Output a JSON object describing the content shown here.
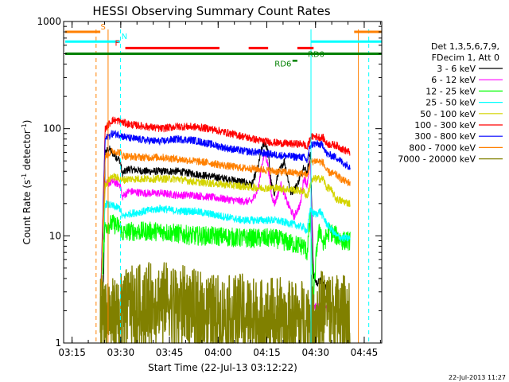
{
  "chart_data": {
    "type": "line",
    "title": "HESSI Observing Summary Count Rates",
    "xlabel": "Start Time (22-Jul-13 03:12:22)",
    "ylabel_main": "Count Rate (s",
    "ylabel_sup1": "-1",
    "ylabel_mid": " detector",
    "ylabel_sup2": "-1",
    "ylabel_end": ")",
    "y_scale": "log",
    "ylim": [
      1,
      1000
    ],
    "xlim_minutes": [
      0,
      98
    ],
    "x_ticks": [
      {
        "label": "03:15",
        "minute": 2.6
      },
      {
        "label": "03:30",
        "minute": 17.6
      },
      {
        "label": "03:45",
        "minute": 32.6
      },
      {
        "label": "04:00",
        "minute": 47.6
      },
      {
        "label": "04:15",
        "minute": 62.6
      },
      {
        "label": "04:30",
        "minute": 77.6
      },
      {
        "label": "04:45",
        "minute": 92.6
      }
    ],
    "y_ticks": [
      {
        "label": "1",
        "value": 1
      },
      {
        "label": "10",
        "value": 10
      },
      {
        "label": "100",
        "value": 100
      },
      {
        "label": "1000",
        "value": 1000
      }
    ],
    "legend_header": [
      "Det 1,3,5,6,7,9,",
      "FDecim 1, Att 0"
    ],
    "data_start_min": 11.3,
    "data_end_min": 88.3,
    "saa_gap_min": [
      75.6,
      76.0
    ],
    "series": [
      {
        "name": "3 - 6 keV",
        "color": "#000000",
        "values": [
          [
            11.3,
            2.8
          ],
          [
            11.8,
            3.5
          ],
          [
            12.3,
            3.4
          ],
          [
            12.8,
            60
          ],
          [
            14,
            65
          ],
          [
            16,
            55
          ],
          [
            17.5,
            50
          ],
          [
            18,
            38
          ],
          [
            20,
            42
          ],
          [
            25,
            40
          ],
          [
            30,
            40
          ],
          [
            35,
            40
          ],
          [
            40,
            38
          ],
          [
            45,
            36
          ],
          [
            50,
            34
          ],
          [
            55,
            32
          ],
          [
            58,
            30
          ],
          [
            60,
            45
          ],
          [
            61,
            65
          ],
          [
            62,
            75
          ],
          [
            63,
            60
          ],
          [
            64,
            30
          ],
          [
            65,
            25
          ],
          [
            66,
            38
          ],
          [
            68,
            50
          ],
          [
            70,
            25
          ],
          [
            72,
            30
          ],
          [
            74,
            45
          ],
          [
            75,
            38
          ],
          [
            76,
            62
          ],
          [
            77,
            4.2
          ],
          [
            78,
            3.6
          ],
          [
            79,
            3.8
          ],
          [
            80,
            3.5
          ],
          [
            81.2,
            3.2
          ]
        ]
      },
      {
        "name": "6 - 12 keV",
        "color": "#ff00ff",
        "values": [
          [
            11.3,
            2.0
          ],
          [
            12.8,
            30
          ],
          [
            15,
            32
          ],
          [
            17.5,
            30
          ],
          [
            18,
            23
          ],
          [
            20,
            26
          ],
          [
            25,
            25
          ],
          [
            30,
            25
          ],
          [
            35,
            24
          ],
          [
            40,
            24
          ],
          [
            45,
            23
          ],
          [
            50,
            22
          ],
          [
            55,
            21
          ],
          [
            58,
            21
          ],
          [
            60,
            28
          ],
          [
            61,
            45
          ],
          [
            62,
            60
          ],
          [
            63,
            45
          ],
          [
            64,
            24
          ],
          [
            65,
            20
          ],
          [
            67,
            30
          ],
          [
            69,
            20
          ],
          [
            71,
            15
          ],
          [
            73,
            20
          ],
          [
            74,
            35
          ],
          [
            75,
            30
          ],
          [
            76,
            50
          ],
          [
            77,
            2.2
          ],
          [
            81.2,
            2.1
          ]
        ]
      },
      {
        "name": "12 - 25 keV",
        "color": "#00ff00",
        "values": [
          [
            11.3,
            2.0
          ],
          [
            12.8,
            12.5
          ],
          [
            15,
            13
          ],
          [
            17.5,
            12
          ],
          [
            18,
            10.5
          ],
          [
            20,
            11
          ],
          [
            25,
            11
          ],
          [
            30,
            11
          ],
          [
            35,
            10.5
          ],
          [
            40,
            10
          ],
          [
            45,
            10
          ],
          [
            50,
            9.8
          ],
          [
            55,
            9.5
          ],
          [
            60,
            9.5
          ],
          [
            65,
            9.5
          ],
          [
            70,
            8.5
          ],
          [
            74,
            8
          ],
          [
            75,
            7
          ],
          [
            76,
            15
          ],
          [
            77,
            2.5
          ],
          [
            78,
            8
          ],
          [
            79,
            12
          ],
          [
            80,
            8
          ],
          [
            81,
            10
          ],
          [
            82,
            11
          ],
          [
            84,
            10
          ],
          [
            86,
            9
          ],
          [
            88.3,
            9
          ]
        ]
      },
      {
        "name": "25 - 50 keV",
        "color": "#00ffff",
        "values": [
          [
            11.3,
            2.0
          ],
          [
            12.8,
            20
          ],
          [
            15,
            19
          ],
          [
            17.5,
            18
          ],
          [
            18,
            15
          ],
          [
            20,
            16
          ],
          [
            25,
            17
          ],
          [
            30,
            18
          ],
          [
            35,
            17
          ],
          [
            40,
            17
          ],
          [
            45,
            16
          ],
          [
            50,
            15
          ],
          [
            55,
            14
          ],
          [
            60,
            14
          ],
          [
            65,
            14
          ],
          [
            70,
            13
          ],
          [
            74,
            12
          ],
          [
            75,
            11
          ],
          [
            76,
            18
          ],
          [
            77,
            16
          ],
          [
            78,
            16
          ],
          [
            79,
            17
          ],
          [
            80,
            15
          ],
          [
            81,
            13
          ],
          [
            82,
            12
          ],
          [
            84,
            10
          ],
          [
            86,
            9.5
          ],
          [
            88.3,
            9.5
          ]
        ]
      },
      {
        "name": "50 - 100 keV",
        "color": "#d4d400",
        "values": [
          [
            11.3,
            2.0
          ],
          [
            12.8,
            30
          ],
          [
            15,
            36
          ],
          [
            17.5,
            34
          ],
          [
            18,
            33
          ],
          [
            20,
            34
          ],
          [
            25,
            34
          ],
          [
            30,
            34
          ],
          [
            35,
            34
          ],
          [
            40,
            32
          ],
          [
            45,
            31
          ],
          [
            50,
            30
          ],
          [
            55,
            29
          ],
          [
            60,
            28
          ],
          [
            65,
            28
          ],
          [
            70,
            27
          ],
          [
            74,
            26
          ],
          [
            75,
            23
          ],
          [
            76,
            30
          ],
          [
            77,
            34
          ],
          [
            78,
            34
          ],
          [
            80,
            34
          ],
          [
            81,
            28
          ],
          [
            82,
            28
          ],
          [
            84,
            22
          ],
          [
            86,
            21
          ],
          [
            88.3,
            20
          ]
        ]
      },
      {
        "name": "100 - 300 keV",
        "color": "#ff0000",
        "values": [
          [
            11.3,
            2.0
          ],
          [
            12.8,
            100
          ],
          [
            15,
            120
          ],
          [
            17.5,
            118
          ],
          [
            18,
            115
          ],
          [
            20,
            110
          ],
          [
            25,
            105
          ],
          [
            30,
            100
          ],
          [
            35,
            105
          ],
          [
            40,
            104
          ],
          [
            45,
            100
          ],
          [
            50,
            92
          ],
          [
            55,
            85
          ],
          [
            60,
            78
          ],
          [
            65,
            74
          ],
          [
            70,
            72
          ],
          [
            74,
            72
          ],
          [
            75,
            65
          ],
          [
            76,
            82
          ],
          [
            77,
            85
          ],
          [
            78,
            84
          ],
          [
            80,
            82
          ],
          [
            81,
            72
          ],
          [
            84,
            70
          ],
          [
            86,
            64
          ],
          [
            88.3,
            60
          ]
        ]
      },
      {
        "name": "300 - 800 keV",
        "color": "#0000ff",
        "values": [
          [
            11.3,
            2.0
          ],
          [
            12.8,
            80
          ],
          [
            15,
            90
          ],
          [
            17.5,
            88
          ],
          [
            18,
            85
          ],
          [
            20,
            82
          ],
          [
            25,
            78
          ],
          [
            30,
            76
          ],
          [
            35,
            80
          ],
          [
            40,
            78
          ],
          [
            45,
            72
          ],
          [
            50,
            66
          ],
          [
            55,
            62
          ],
          [
            60,
            60
          ],
          [
            65,
            57
          ],
          [
            70,
            55
          ],
          [
            74,
            54
          ],
          [
            75,
            50
          ],
          [
            76,
            70
          ],
          [
            77,
            72
          ],
          [
            78,
            72
          ],
          [
            80,
            70
          ],
          [
            81,
            58
          ],
          [
            84,
            54
          ],
          [
            86,
            48
          ],
          [
            88.3,
            44
          ]
        ]
      },
      {
        "name": "800 - 7000 keV",
        "color": "#ff8000",
        "values": [
          [
            11.3,
            2.0
          ],
          [
            12.8,
            55
          ],
          [
            15,
            62
          ],
          [
            17.5,
            60
          ],
          [
            18,
            56
          ],
          [
            20,
            55
          ],
          [
            25,
            54
          ],
          [
            30,
            54
          ],
          [
            35,
            52
          ],
          [
            40,
            50
          ],
          [
            45,
            48
          ],
          [
            50,
            45
          ],
          [
            55,
            43
          ],
          [
            60,
            42
          ],
          [
            65,
            40
          ],
          [
            70,
            39
          ],
          [
            74,
            38
          ],
          [
            75,
            36
          ],
          [
            76,
            48
          ],
          [
            77,
            50
          ],
          [
            78,
            50
          ],
          [
            80,
            48
          ],
          [
            81,
            40
          ],
          [
            84,
            37
          ],
          [
            86,
            33
          ],
          [
            88.3,
            31
          ]
        ]
      },
      {
        "name": "7000 - 20000 keV",
        "color": "#808000",
        "values": [
          [
            11.3,
            2.0
          ],
          [
            13,
            2.2
          ],
          [
            15,
            1.8
          ],
          [
            17.5,
            2.0
          ],
          [
            20,
            2.3
          ],
          [
            25,
            2.5
          ],
          [
            30,
            2.6
          ],
          [
            35,
            2.5
          ],
          [
            40,
            2.2
          ],
          [
            45,
            2.0
          ],
          [
            50,
            1.9
          ],
          [
            55,
            2.0
          ],
          [
            60,
            1.8
          ],
          [
            65,
            1.9
          ],
          [
            70,
            1.7
          ],
          [
            75,
            1.8
          ],
          [
            77,
            2.0
          ],
          [
            80,
            2.2
          ],
          [
            84,
            2.0
          ],
          [
            88.3,
            1.9
          ]
        ]
      }
    ],
    "flags": [
      {
        "label": "S",
        "color": "#ff8000",
        "y_value": 800
      },
      {
        "label": "N",
        "color": "#00ffff",
        "y_value": 650
      },
      {
        "label": "F",
        "color": "#ff0000",
        "y_value": 565
      },
      {
        "label": "RD0",
        "color": "#008000",
        "y_value": 500
      },
      {
        "label": "RD6",
        "color": "#008000",
        "y_value": 430
      }
    ],
    "vertical_markers": [
      {
        "minute": 10.0,
        "color": "#ff8000",
        "style": "dashed"
      },
      {
        "minute": 13.7,
        "color": "#ff8000",
        "style": "solid"
      },
      {
        "minute": 17.5,
        "color": "#00ffff",
        "style": "dashed"
      },
      {
        "minute": 76.2,
        "color": "#00ffff",
        "style": "solid"
      },
      {
        "minute": 90.8,
        "color": "#ff8000",
        "style": "solid"
      },
      {
        "minute": 94.0,
        "color": "#00ffff",
        "style": "dashed"
      }
    ],
    "grid": false,
    "legend_position": "right"
  },
  "footer": {
    "timestamp": "22-Jul-2013 11:27"
  }
}
